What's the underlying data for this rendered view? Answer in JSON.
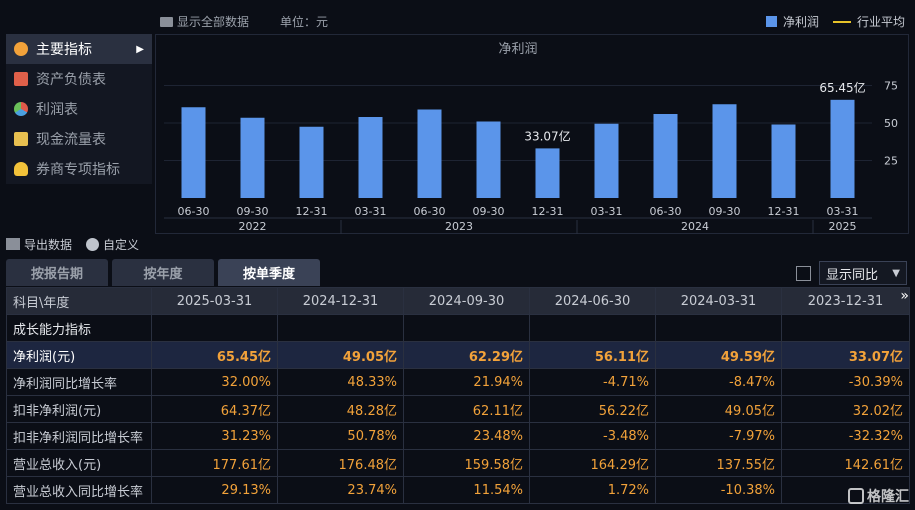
{
  "header": {
    "show_all": "显示全部数据",
    "unit": "单位：元",
    "legend_bar": "净利润",
    "legend_line": "行业平均"
  },
  "nav": {
    "items": [
      {
        "label": "主要指标",
        "icon": "star-icon"
      },
      {
        "label": "资产负债表",
        "icon": "document-icon"
      },
      {
        "label": "利润表",
        "icon": "pie-icon"
      },
      {
        "label": "现金流量表",
        "icon": "cash-icon"
      },
      {
        "label": "券商专项指标",
        "icon": "user-icon"
      }
    ]
  },
  "chart_data": {
    "type": "bar",
    "title": "净利润",
    "categories": [
      "06-30",
      "09-30",
      "12-31",
      "03-31",
      "06-30",
      "09-30",
      "12-31",
      "03-31",
      "06-30",
      "09-30",
      "12-31",
      "03-31"
    ],
    "groups": [
      {
        "label": "2022",
        "span": [
          0,
          2
        ]
      },
      {
        "label": "2023",
        "span": [
          3,
          6
        ]
      },
      {
        "label": "2024",
        "span": [
          7,
          10
        ]
      },
      {
        "label": "2025",
        "span": [
          11,
          11
        ]
      }
    ],
    "series": [
      {
        "name": "净利润",
        "values": [
          60.5,
          53.5,
          47.5,
          54,
          59,
          51,
          33.07,
          49.5,
          56,
          62.5,
          49,
          65.45
        ],
        "color": "#5b95ea"
      }
    ],
    "annotations": [
      {
        "index": 6,
        "text": "33.07亿"
      },
      {
        "index": 11,
        "text": "65.45亿"
      }
    ],
    "yticks": [
      25,
      50,
      75
    ],
    "ylim": [
      0,
      82
    ]
  },
  "tools": {
    "export": "导出数据",
    "custom": "自定义"
  },
  "tabs": [
    "按报告期",
    "按年度",
    "按单季度"
  ],
  "compare": {
    "label": "显示同比"
  },
  "table": {
    "header_label": "科目\\年度",
    "columns": [
      "2025-03-31",
      "2024-12-31",
      "2024-09-30",
      "2024-06-30",
      "2024-03-31",
      "2023-12-31"
    ],
    "section": "成长能力指标",
    "rows": [
      {
        "label": "净利润(元)",
        "values": [
          "65.45亿",
          "49.05亿",
          "62.29亿",
          "56.11亿",
          "49.59亿",
          "33.07亿"
        ],
        "highlight": true
      },
      {
        "label": "净利润同比增长率",
        "values": [
          "32.00%",
          "48.33%",
          "21.94%",
          "-4.71%",
          "-8.47%",
          "-30.39%"
        ]
      },
      {
        "label": "扣非净利润(元)",
        "values": [
          "64.37亿",
          "48.28亿",
          "62.11亿",
          "56.22亿",
          "49.05亿",
          "32.02亿"
        ]
      },
      {
        "label": "扣非净利润同比增长率",
        "values": [
          "31.23%",
          "50.78%",
          "23.48%",
          "-3.48%",
          "-7.97%",
          "-32.32%"
        ]
      },
      {
        "label": "营业总收入(元)",
        "values": [
          "177.61亿",
          "176.48亿",
          "159.58亿",
          "164.29亿",
          "137.55亿",
          "142.61亿"
        ]
      },
      {
        "label": "营业总收入同比增长率",
        "values": [
          "29.13%",
          "23.74%",
          "11.54%",
          "1.72%",
          "-10.38%",
          ""
        ]
      }
    ]
  },
  "watermark": "格隆汇",
  "colors": {
    "accent": "#f2a23a",
    "bar": "#5b95ea",
    "line": "#e6c229"
  }
}
